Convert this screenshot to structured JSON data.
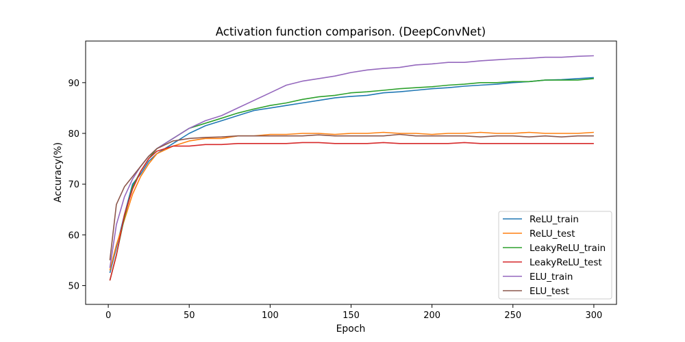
{
  "chart_data": {
    "type": "line",
    "title": "Activation function comparison. (DeepConvNet)",
    "xlabel": "Epoch",
    "ylabel": "Accuracy(%)",
    "xlim": [
      -14,
      314
    ],
    "ylim": [
      46.3,
      98.2
    ],
    "x_ticks": [
      0,
      50,
      100,
      150,
      200,
      250,
      300
    ],
    "y_ticks": [
      50,
      60,
      70,
      80,
      90
    ],
    "grid": false,
    "legend_position": "bottom-right",
    "x": [
      1,
      5,
      10,
      15,
      20,
      25,
      30,
      40,
      50,
      60,
      70,
      80,
      90,
      100,
      110,
      120,
      130,
      140,
      150,
      160,
      170,
      180,
      190,
      200,
      210,
      220,
      230,
      240,
      250,
      260,
      270,
      280,
      290,
      300
    ],
    "series": [
      {
        "name": "ReLU_train",
        "color": "#1f77b4",
        "values": [
          52.5,
          57.5,
          64.0,
          70.0,
          72.0,
          74.5,
          76.0,
          78.0,
          80.0,
          81.5,
          82.5,
          83.5,
          84.5,
          85.0,
          85.5,
          86.0,
          86.5,
          87.0,
          87.3,
          87.5,
          88.0,
          88.2,
          88.5,
          88.8,
          89.0,
          89.3,
          89.5,
          89.7,
          90.0,
          90.2,
          90.5,
          90.6,
          90.8,
          91.0
        ]
      },
      {
        "name": "ReLU_test",
        "color": "#ff7f0e",
        "values": [
          53.0,
          58.0,
          63.0,
          68.0,
          71.5,
          74.0,
          76.0,
          77.5,
          78.5,
          79.0,
          79.0,
          79.5,
          79.5,
          79.8,
          79.8,
          80.0,
          80.0,
          79.8,
          80.0,
          80.0,
          80.2,
          80.0,
          80.0,
          79.8,
          80.0,
          80.0,
          80.2,
          80.0,
          80.0,
          80.2,
          80.0,
          80.0,
          80.0,
          80.2
        ]
      },
      {
        "name": "LeakyReLU_train",
        "color": "#2ca02c",
        "values": [
          51.0,
          56.0,
          63.5,
          69.5,
          72.5,
          75.0,
          77.0,
          79.0,
          81.0,
          82.0,
          83.0,
          84.0,
          84.8,
          85.5,
          86.0,
          86.7,
          87.2,
          87.5,
          88.0,
          88.2,
          88.5,
          88.8,
          89.0,
          89.2,
          89.5,
          89.7,
          90.0,
          90.0,
          90.2,
          90.2,
          90.5,
          90.5,
          90.5,
          90.8
        ]
      },
      {
        "name": "LeakyReLU_test",
        "color": "#d62728",
        "values": [
          51.0,
          56.0,
          64.0,
          69.0,
          72.5,
          75.0,
          76.5,
          77.5,
          77.5,
          77.8,
          77.8,
          78.0,
          78.0,
          78.0,
          78.0,
          78.2,
          78.2,
          78.0,
          78.0,
          78.0,
          78.2,
          78.0,
          78.0,
          78.0,
          78.0,
          78.2,
          78.0,
          78.0,
          78.0,
          78.0,
          78.0,
          78.0,
          78.0,
          78.0
        ]
      },
      {
        "name": "ELU_train",
        "color": "#9467bd",
        "values": [
          53.5,
          62.0,
          67.5,
          71.0,
          73.5,
          75.5,
          77.0,
          79.0,
          81.0,
          82.5,
          83.5,
          85.0,
          86.5,
          88.0,
          89.5,
          90.3,
          90.8,
          91.3,
          92.0,
          92.5,
          92.8,
          93.0,
          93.5,
          93.7,
          94.0,
          94.0,
          94.3,
          94.5,
          94.7,
          94.8,
          95.0,
          95.0,
          95.2,
          95.3
        ]
      },
      {
        "name": "ELU_test",
        "color": "#8c564b",
        "values": [
          55.0,
          66.0,
          69.5,
          71.5,
          73.5,
          75.5,
          77.0,
          78.5,
          79.0,
          79.2,
          79.3,
          79.5,
          79.5,
          79.5,
          79.5,
          79.5,
          79.7,
          79.5,
          79.5,
          79.5,
          79.5,
          79.8,
          79.5,
          79.5,
          79.5,
          79.5,
          79.3,
          79.5,
          79.5,
          79.3,
          79.5,
          79.3,
          79.5,
          79.5
        ]
      }
    ]
  }
}
